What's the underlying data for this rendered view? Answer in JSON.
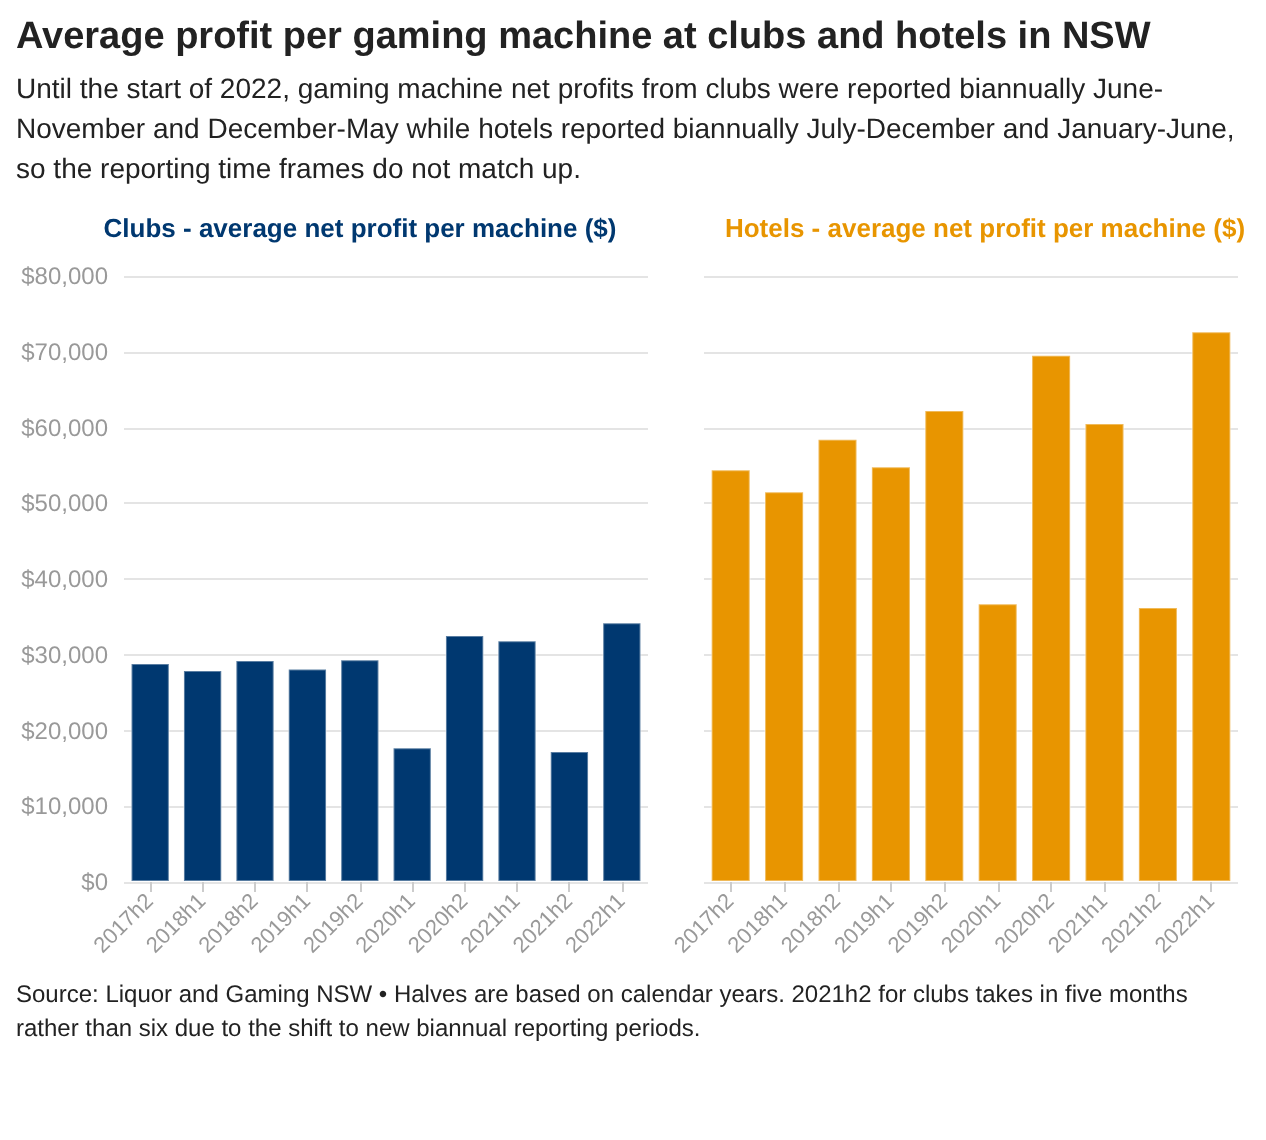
{
  "chart_data": [
    {
      "type": "bar",
      "title": "Average profit per gaming machine at clubs and hotels in NSW",
      "subtitle": "Until the start of 2022, gaming machine net profits from clubs were reported biannually June-November and December-May while hotels reported biannually July-December and January-June, so the reporting time frames do not match up.",
      "categories": [
        "2017h2",
        "2018h1",
        "2018h2",
        "2019h1",
        "2019h2",
        "2020h1",
        "2020h2",
        "2021h1",
        "2021h2",
        "2022h1"
      ],
      "series": [
        {
          "name": "Clubs - average net profit per machine ($)",
          "color": "#003870",
          "values": [
            28900,
            28000,
            29300,
            28200,
            29400,
            17800,
            32600,
            31900,
            17300,
            34300
          ]
        }
      ],
      "ylim": [
        0,
        80000
      ],
      "yticks": [
        {
          "value": 0,
          "label": "$0"
        },
        {
          "value": 10000,
          "label": "$10,000"
        },
        {
          "value": 20000,
          "label": "$20,000"
        },
        {
          "value": 30000,
          "label": "$30,000"
        },
        {
          "value": 40000,
          "label": "$40,000"
        },
        {
          "value": 50000,
          "label": "$50,000"
        },
        {
          "value": 60000,
          "label": "$60,000"
        },
        {
          "value": 70000,
          "label": "$70,000"
        },
        {
          "value": 80000,
          "label": "$80,000"
        }
      ],
      "grid": "y",
      "legend": "top"
    },
    {
      "type": "bar",
      "categories": [
        "2017h2",
        "2018h1",
        "2018h2",
        "2019h1",
        "2019h2",
        "2020h1",
        "2020h2",
        "2021h1",
        "2021h2",
        "2022h1"
      ],
      "series": [
        {
          "name": "Hotels - average net profit per machine ($)",
          "color": "#e89500",
          "values": [
            54500,
            51600,
            58500,
            54900,
            62300,
            36800,
            69600,
            60600,
            36300,
            72700
          ]
        }
      ],
      "ylim": [
        0,
        80000
      ],
      "yticks": [
        {
          "value": 0,
          "label": null
        },
        {
          "value": 10000,
          "label": null
        },
        {
          "value": 20000,
          "label": null
        },
        {
          "value": 30000,
          "label": null
        },
        {
          "value": 40000,
          "label": null
        },
        {
          "value": 50000,
          "label": null
        },
        {
          "value": 60000,
          "label": null
        },
        {
          "value": 70000,
          "label": null
        },
        {
          "value": 80000,
          "label": null
        }
      ],
      "grid": "y",
      "legend": "top",
      "tick_labels": "x",
      "annotations": [
        "Source: Liquor and Gaming NSW • Halves are based on calendar years. 2021h2 for clubs takes in five months rather than six due to the shift to new biannual reporting periods."
      ]
    }
  ]
}
